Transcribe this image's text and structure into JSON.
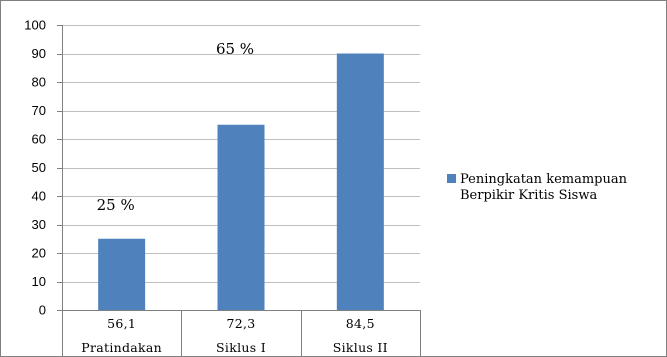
{
  "chart_data": {
    "type": "bar",
    "title": "",
    "xlabel": "",
    "ylabel": "",
    "ylim": [
      0,
      100
    ],
    "yticks": [
      0,
      10,
      20,
      30,
      40,
      50,
      60,
      70,
      80,
      90,
      100
    ],
    "grid": true,
    "legend_position": "right",
    "bar_color": "#4f81bd",
    "categories": [
      "Pratindakan",
      "Siklus I",
      "Siklus II"
    ],
    "table_row": [
      "56,1",
      "72,3",
      "84,5"
    ],
    "series": [
      {
        "name": "Peningkatan kemampuan Berpikir Kritis Siswa",
        "legend_lines": [
          "Peningkatan kemampuan",
          "Berpikir Kritis Siswa"
        ],
        "values": [
          25,
          65,
          90
        ]
      }
    ],
    "annotations": [
      "25 %",
      "65 %",
      ""
    ]
  }
}
